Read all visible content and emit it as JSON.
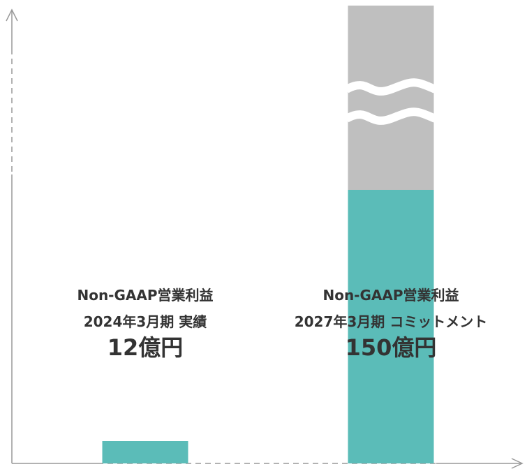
{
  "chart_data": {
    "type": "bar",
    "categories": [
      "2024年3月期 実績",
      "2027年3月期 コミットメント"
    ],
    "series": [
      {
        "values": [
          12,
          150
        ]
      }
    ],
    "unit": "億円",
    "labels": [
      {
        "line1": "Non-GAAP営業利益",
        "line2": "2024年3月期 実績",
        "value_text": "12億円"
      },
      {
        "line1": "Non-GAAP営業利益",
        "line2": "2027年3月期 コミットメント",
        "value_text": "150億円"
      }
    ],
    "axis_break": {
      "bar_index": 1,
      "extension_color": "#bfbfbf"
    },
    "grid": false,
    "legend": "none"
  },
  "colors": {
    "bar": "#5bbcb8",
    "bar_extension": "#bfbfbf",
    "axis": "#999999",
    "text": "#333333"
  }
}
